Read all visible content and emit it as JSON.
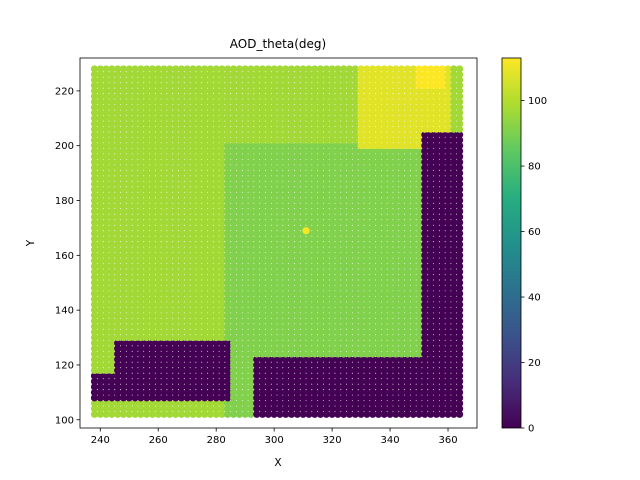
{
  "chart_data": {
    "type": "scatter",
    "title": "AOD_theta(deg)",
    "xlabel": "X",
    "ylabel": "Y",
    "xlim": [
      233,
      370
    ],
    "ylim": [
      97,
      232
    ],
    "x_ticks": [
      240,
      260,
      280,
      300,
      320,
      340,
      360
    ],
    "y_ticks": [
      100,
      120,
      140,
      160,
      180,
      200,
      220
    ],
    "grid": false,
    "colorbar": {
      "colormap": "viridis",
      "range": [
        0,
        113
      ],
      "ticks": [
        0,
        20,
        40,
        60,
        80,
        100
      ]
    },
    "scatter_grid": {
      "x_range": [
        238,
        364
      ],
      "y_range": [
        102,
        228
      ],
      "step": 2
    },
    "dense_value_regions": [
      {
        "label": "background",
        "value": 97
      },
      {
        "label": "central band",
        "value": 91,
        "x_range": [
          284,
          350
        ],
        "y_range": [
          102,
          200
        ]
      },
      {
        "label": "upper-right high",
        "value": 108,
        "x_range": [
          330,
          360
        ],
        "y_range": [
          200,
          228
        ]
      },
      {
        "label": "upper-right peak",
        "value": 113,
        "x_range": [
          350,
          358
        ],
        "y_range": [
          222,
          228
        ]
      },
      {
        "label": "bottom-left low block",
        "value": 0,
        "x_range": [
          246,
          285
        ],
        "y_range": [
          108,
          128
        ]
      },
      {
        "label": "left low strip",
        "value": 0,
        "x_range": [
          238,
          250
        ],
        "y_range": [
          108,
          116
        ]
      },
      {
        "label": "bottom-center low block",
        "value": 0,
        "x_range": [
          294,
          356
        ],
        "y_range": [
          102,
          122
        ]
      },
      {
        "label": "right low strip",
        "value": 0,
        "x_range": [
          352,
          364
        ],
        "y_range": [
          102,
          204
        ]
      },
      {
        "label": "isolated outlier",
        "value": 112,
        "x": 311,
        "y": 169
      }
    ]
  }
}
